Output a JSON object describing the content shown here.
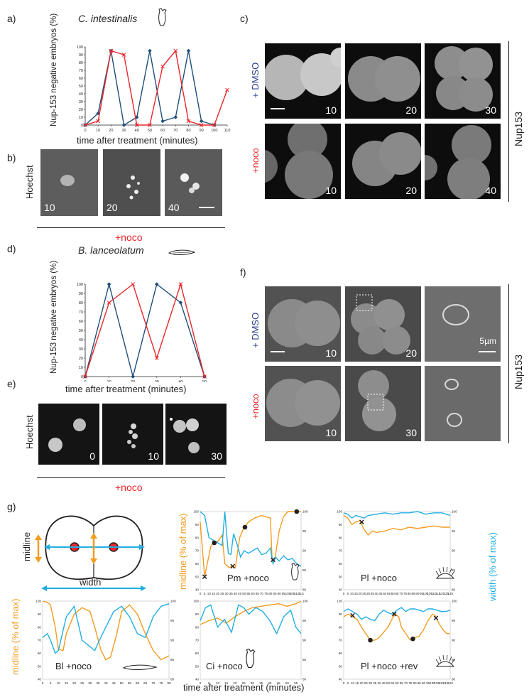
{
  "panels": {
    "a": "a)",
    "b": "b)",
    "c": "c)",
    "d": "d)",
    "e": "e)",
    "f": "f)",
    "g": "g)"
  },
  "colors": {
    "blue": "#1f4e79",
    "red": "#e8262a",
    "orange": "#f39c1f",
    "cyan": "#22aee3",
    "dmso": "#2b3f8f"
  },
  "panel_a": {
    "title": "C. intestinalis",
    "ylabel": "Nup-153 negative embryos (%)",
    "xlabel": "time after treatment (minutes)"
  },
  "panel_b": {
    "row_label": "Hoechst",
    "frames": [
      "10",
      "20",
      "40"
    ],
    "treatment": "+noco"
  },
  "panel_c": {
    "row1_label": "+ DMSO",
    "row2_label": "+noco",
    "side_label": "Nup153",
    "row1_frames": [
      "10",
      "20",
      "30"
    ],
    "row2_frames": [
      "10",
      "20",
      "40"
    ]
  },
  "panel_d": {
    "title": "B. lanceolatum",
    "ylabel": "Nup-153 negative embryos (%)",
    "xlabel": "time after treatment (minutes)"
  },
  "panel_e": {
    "row_label": "Hoechst",
    "frames": [
      "0",
      "10",
      "30"
    ],
    "treatment": "+noco"
  },
  "panel_f": {
    "row1_label": "+ DMSO",
    "row2_label": "+noco",
    "side_label": "Nup153",
    "row1_frames": [
      "10",
      "20",
      ""
    ],
    "row2_frames": [
      "10",
      "30",
      ""
    ],
    "scale_label": "5µm"
  },
  "panel_g": {
    "diagram_midline": "midline",
    "diagram_width": "width",
    "ylabel_left": "midline (% of max)",
    "ylabel_right": "width (% of max)",
    "xlabel": "time after treatment (minutes)",
    "subplots": [
      {
        "label": "Pm +noco"
      },
      {
        "label": "Pl +noco"
      },
      {
        "label": "Bl +noco"
      },
      {
        "label": "Ci +noco"
      },
      {
        "label": "Pl +noco +rev"
      }
    ]
  },
  "chart_data": [
    {
      "panel": "a",
      "type": "line",
      "title": "C. intestinalis",
      "xlabel": "time after treatment (minutes)",
      "ylabel": "Nup-153 negative embryos (%)",
      "xlim": [
        0,
        110
      ],
      "ylim": [
        0,
        100
      ],
      "xticks": [
        0,
        10,
        20,
        30,
        40,
        50,
        60,
        70,
        80,
        90,
        100,
        110
      ],
      "yticks": [
        0,
        10,
        20,
        30,
        40,
        50,
        60,
        70,
        80,
        90,
        100
      ],
      "series": [
        {
          "color": "#1f4e79",
          "marker": "diamond",
          "x": [
            0,
            10,
            20,
            30,
            40,
            50,
            60,
            70,
            80,
            90,
            100
          ],
          "y": [
            0,
            15,
            95,
            0,
            10,
            95,
            5,
            10,
            95,
            5,
            0
          ]
        },
        {
          "color": "#e8262a",
          "marker": "x",
          "x": [
            0,
            10,
            20,
            30,
            40,
            50,
            60,
            70,
            80,
            90,
            100,
            110
          ],
          "y": [
            0,
            5,
            95,
            90,
            0,
            0,
            75,
            95,
            5,
            0,
            0,
            45
          ]
        }
      ]
    },
    {
      "panel": "d",
      "type": "line",
      "title": "B. lanceolatum",
      "xlabel": "time after treatment (minutes)",
      "ylabel": "Nup-153 negative embryos (%)",
      "xlim": [
        0,
        50
      ],
      "ylim": [
        0,
        100
      ],
      "xticks": [
        0,
        10,
        20,
        30,
        40,
        50
      ],
      "yticks": [
        0,
        10,
        20,
        30,
        40,
        50,
        60,
        70,
        80,
        90,
        100
      ],
      "series": [
        {
          "color": "#1f4e79",
          "marker": "diamond",
          "x": [
            0,
            10,
            20,
            30,
            40,
            50
          ],
          "y": [
            0,
            100,
            0,
            100,
            80,
            0
          ]
        },
        {
          "color": "#e8262a",
          "marker": "x",
          "x": [
            0,
            10,
            20,
            30,
            40,
            50
          ],
          "y": [
            0,
            80,
            100,
            20,
            100,
            0
          ]
        }
      ]
    },
    {
      "panel": "g-Pm",
      "type": "line",
      "label": "Pm +noco",
      "xlim": [
        0,
        115
      ],
      "ylim_left": [
        40,
        100
      ],
      "ylim_right": [
        80,
        100
      ],
      "xticks": [
        0,
        5,
        10,
        15,
        20,
        25,
        30,
        35,
        40,
        45,
        50,
        55,
        60,
        65,
        70,
        75,
        80,
        85,
        90,
        95,
        100,
        105,
        110,
        115
      ],
      "yticks_left": [
        40,
        50,
        60,
        70,
        80,
        90,
        100
      ],
      "yticks_right": [
        80,
        85,
        90,
        95,
        100
      ],
      "series": [
        {
          "color": "#f39c1f",
          "axis": "left",
          "x": [
            0,
            5,
            8,
            12,
            15,
            20,
            25,
            28,
            33,
            37,
            40,
            45,
            50,
            55,
            62,
            70,
            75,
            80,
            82,
            85,
            90,
            95,
            100,
            105,
            110,
            115
          ],
          "y": [
            92,
            50,
            60,
            73,
            76,
            77,
            82,
            60,
            57,
            58,
            57,
            80,
            88,
            92,
            95,
            97,
            96,
            95,
            62,
            63,
            85,
            96,
            100,
            100,
            100,
            100
          ]
        },
        {
          "color": "#22aee3",
          "axis": "left",
          "x": [
            0,
            5,
            10,
            15,
            20,
            25,
            28,
            32,
            35,
            38,
            42,
            46,
            50,
            55,
            60,
            65,
            70,
            75,
            80,
            83,
            86,
            90,
            95,
            100,
            105,
            110,
            115
          ],
          "y": [
            100,
            97,
            80,
            78,
            76,
            74,
            100,
            68,
            67,
            83,
            75,
            65,
            70,
            68,
            70,
            72,
            67,
            68,
            72,
            60,
            65,
            62,
            66,
            63,
            64,
            60,
            58
          ]
        }
      ],
      "markers": [
        {
          "type": "x",
          "x": 5,
          "y": 50
        },
        {
          "type": "dot",
          "x": 16,
          "y": 76
        },
        {
          "type": "x",
          "x": 37,
          "y": 58
        },
        {
          "type": "dot",
          "x": 51,
          "y": 88
        },
        {
          "type": "x",
          "x": 83,
          "y": 63
        },
        {
          "type": "dot",
          "x": 110,
          "y": 100
        }
      ]
    },
    {
      "panel": "g-Pl",
      "type": "line",
      "label": "Pl +noco",
      "xlim": [
        0,
        130
      ],
      "ylim_left": [
        40,
        100
      ],
      "ylim_right": [
        80,
        100
      ],
      "xticks": [
        0,
        5,
        10,
        15,
        20,
        25,
        30,
        35,
        40,
        45,
        50,
        55,
        60,
        65,
        70,
        75,
        80,
        85,
        90,
        95,
        100,
        105,
        110,
        115,
        120,
        125,
        130
      ],
      "yticks_left": [
        40,
        50,
        60,
        70,
        80,
        90,
        100
      ],
      "yticks_right": [
        80,
        85,
        90,
        95,
        100
      ],
      "series": [
        {
          "color": "#f39c1f",
          "axis": "left",
          "x": [
            0,
            5,
            10,
            15,
            20,
            25,
            30,
            35,
            40,
            50,
            60,
            70,
            80,
            90,
            100,
            110,
            120,
            130
          ],
          "y": [
            97,
            95,
            90,
            92,
            93,
            86,
            82,
            85,
            84,
            85,
            87,
            86,
            88,
            87,
            88,
            89,
            88,
            88
          ]
        },
        {
          "color": "#22aee3",
          "axis": "left",
          "x": [
            0,
            5,
            10,
            15,
            20,
            25,
            30,
            40,
            50,
            60,
            70,
            80,
            90,
            100,
            110,
            120,
            130
          ],
          "y": [
            99,
            98,
            95,
            97,
            96,
            95,
            97,
            98,
            99,
            98,
            99,
            99,
            100,
            98,
            99,
            99,
            97
          ]
        }
      ],
      "markers": [
        {
          "type": "x",
          "x": 22,
          "y": 92
        }
      ]
    },
    {
      "panel": "g-Bl",
      "type": "line",
      "label": "Bl +noco",
      "xlim": [
        0,
        80
      ],
      "ylim_left": [
        40,
        100
      ],
      "ylim_right": [
        80,
        100
      ],
      "xticks": [
        0,
        5,
        10,
        15,
        20,
        25,
        30,
        35,
        40,
        45,
        50,
        55,
        60,
        65,
        70,
        75,
        80
      ],
      "yticks_left": [
        40,
        50,
        60,
        70,
        80,
        90,
        100
      ],
      "yticks_right": [
        80,
        85,
        90,
        95,
        100
      ],
      "series": [
        {
          "color": "#f39c1f",
          "axis": "left",
          "x": [
            0,
            3,
            5,
            8,
            10,
            13,
            15,
            20,
            25,
            30,
            33,
            37,
            40,
            43,
            47,
            50,
            55,
            60,
            65,
            70,
            75,
            80
          ],
          "y": [
            100,
            99,
            97,
            80,
            63,
            62,
            75,
            90,
            95,
            92,
            80,
            62,
            55,
            57,
            75,
            92,
            97,
            90,
            75,
            62,
            55,
            58
          ]
        },
        {
          "color": "#22aee3",
          "axis": "left",
          "x": [
            0,
            3,
            5,
            8,
            10,
            15,
            20,
            25,
            30,
            33,
            36,
            40,
            45,
            50,
            55,
            60,
            65,
            70,
            75,
            80
          ],
          "y": [
            72,
            75,
            70,
            60,
            62,
            88,
            96,
            70,
            65,
            62,
            70,
            80,
            92,
            96,
            88,
            75,
            72,
            88,
            96,
            98
          ]
        }
      ]
    },
    {
      "panel": "g-Ci",
      "type": "line",
      "label": "Ci +noco",
      "xlim": [
        0,
        58
      ],
      "ylim_left": [
        40,
        100
      ],
      "ylim_right": [
        80,
        100
      ],
      "xticks": [
        0,
        5,
        10,
        15,
        20,
        25,
        30,
        35,
        40,
        45,
        50,
        55
      ],
      "yticks_left": [
        40,
        50,
        60,
        70,
        80,
        90,
        100
      ],
      "yticks_right": [
        80,
        85,
        90,
        95,
        100
      ],
      "series": [
        {
          "color": "#f39c1f",
          "axis": "left",
          "x": [
            0,
            5,
            10,
            15,
            20,
            25,
            30,
            35,
            40,
            45,
            50,
            55,
            58
          ],
          "y": [
            82,
            85,
            87,
            83,
            88,
            92,
            95,
            96,
            97,
            98,
            96,
            98,
            100
          ]
        },
        {
          "color": "#22aee3",
          "axis": "left",
          "x": [
            0,
            3,
            6,
            10,
            14,
            18,
            22,
            25,
            28,
            32,
            36,
            40,
            44,
            48,
            52,
            55,
            58
          ],
          "y": [
            85,
            95,
            97,
            80,
            86,
            76,
            97,
            95,
            90,
            95,
            92,
            85,
            75,
            88,
            93,
            80,
            75
          ]
        }
      ]
    },
    {
      "panel": "g-Pl-rev",
      "type": "line",
      "label": "Pl +noco +rev",
      "xlim": [
        0,
        120
      ],
      "ylim_left": [
        40,
        100
      ],
      "ylim_right": [
        80,
        100
      ],
      "xticks": [
        0,
        5,
        10,
        15,
        20,
        25,
        30,
        35,
        40,
        45,
        50,
        55,
        60,
        65,
        70,
        75,
        80,
        85,
        90,
        95,
        100,
        105,
        110,
        115,
        120
      ],
      "yticks_left": [
        40,
        50,
        60,
        70,
        80,
        90,
        100
      ],
      "yticks_right": [
        80,
        85,
        90,
        95,
        100
      ],
      "series": [
        {
          "color": "#f39c1f",
          "axis": "left",
          "x": [
            0,
            5,
            10,
            15,
            20,
            25,
            30,
            35,
            40,
            45,
            50,
            55,
            58,
            62,
            65,
            70,
            75,
            80,
            85,
            90,
            95,
            100,
            103,
            108,
            112,
            116,
            120
          ],
          "y": [
            88,
            90,
            88,
            86,
            80,
            75,
            70,
            70,
            72,
            76,
            80,
            87,
            90,
            88,
            80,
            75,
            70,
            72,
            73,
            78,
            85,
            90,
            89,
            82,
            78,
            75,
            75
          ]
        },
        {
          "color": "#22aee3",
          "axis": "left",
          "x": [
            0,
            5,
            10,
            15,
            20,
            25,
            30,
            35,
            40,
            45,
            50,
            55,
            60,
            65,
            70,
            75,
            80,
            85,
            90,
            95,
            100,
            105,
            110,
            115,
            120
          ],
          "y": [
            92,
            94,
            92,
            90,
            86,
            88,
            86,
            85,
            90,
            93,
            91,
            90,
            93,
            95,
            92,
            94,
            94,
            93,
            92,
            94,
            94,
            93,
            92,
            92,
            93
          ]
        }
      ],
      "markers": [
        {
          "type": "x",
          "x": 10,
          "y": 89
        },
        {
          "type": "dot",
          "x": 30,
          "y": 70
        },
        {
          "type": "x",
          "x": 57,
          "y": 90
        },
        {
          "type": "dot",
          "x": 78,
          "y": 71
        },
        {
          "type": "x",
          "x": 104,
          "y": 87
        }
      ]
    }
  ]
}
